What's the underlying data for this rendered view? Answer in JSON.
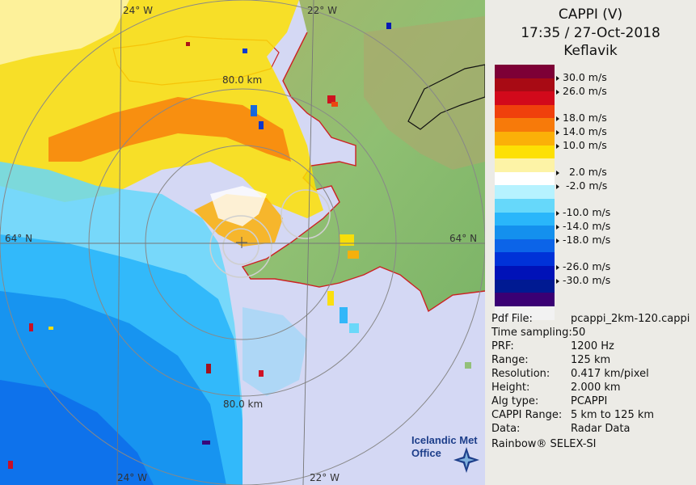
{
  "header": {
    "product": "CAPPI (V)",
    "datetime": "17:35 / 27-Oct-2018",
    "station": "Keflavik"
  },
  "map": {
    "lat_labels": [
      "64° N",
      "64° N"
    ],
    "lon_labels_top": [
      "24° W",
      "22° W"
    ],
    "lon_labels_bottom": [
      "24° W",
      "22° W"
    ],
    "range_labels": [
      "80.0 km",
      "80.0 km"
    ],
    "colors": {
      "background": "#d4d8f4",
      "land_low": "#7fb86b",
      "land_high": "#a8b06a",
      "coast": "#cc2222"
    }
  },
  "legend": {
    "labels": [
      "30.0 m/s",
      "26.0 m/s",
      "18.0 m/s",
      "14.0 m/s",
      "10.0 m/s",
      "2.0 m/s",
      "-2.0 m/s",
      "-10.0 m/s",
      "-14.0 m/s",
      "-18.0 m/s",
      "-26.0 m/s",
      "-30.0 m/s"
    ],
    "colors": [
      "#7d0036",
      "#a80a14",
      "#d2091b",
      "#f0400c",
      "#f77a0a",
      "#fbb008",
      "#fde004",
      "#fdf3a6",
      "#ffffff",
      "#b6f2ff",
      "#66d8fa",
      "#2ab6fa",
      "#1490ee",
      "#0c64e8",
      "#0032d8",
      "#0012b8",
      "#001a92",
      "#3a0074",
      "#f2f2f2"
    ]
  },
  "info": {
    "rows": [
      {
        "key": "Pdf File:",
        "value": "pcappi_2km-120.cappi"
      },
      {
        "key": "Time sampling:",
        "value": "50"
      },
      {
        "key": "PRF:",
        "value": "1200 Hz"
      },
      {
        "key": "Range:",
        "value": "125 km"
      },
      {
        "key": "Resolution:",
        "value": "0.417 km/pixel"
      },
      {
        "key": "Height:",
        "value": "2.000 km"
      },
      {
        "key": "Alg type:",
        "value": "PCAPPI"
      },
      {
        "key": "CAPPI Range:",
        "value": "5 km to 125 km"
      },
      {
        "key": "Data:",
        "value": "Radar Data"
      }
    ],
    "footer": "Rainbow® SELEX-SI"
  },
  "logo": {
    "line1": "Icelandic Met",
    "line2": "Office",
    "icon": "met-office-star-icon"
  }
}
